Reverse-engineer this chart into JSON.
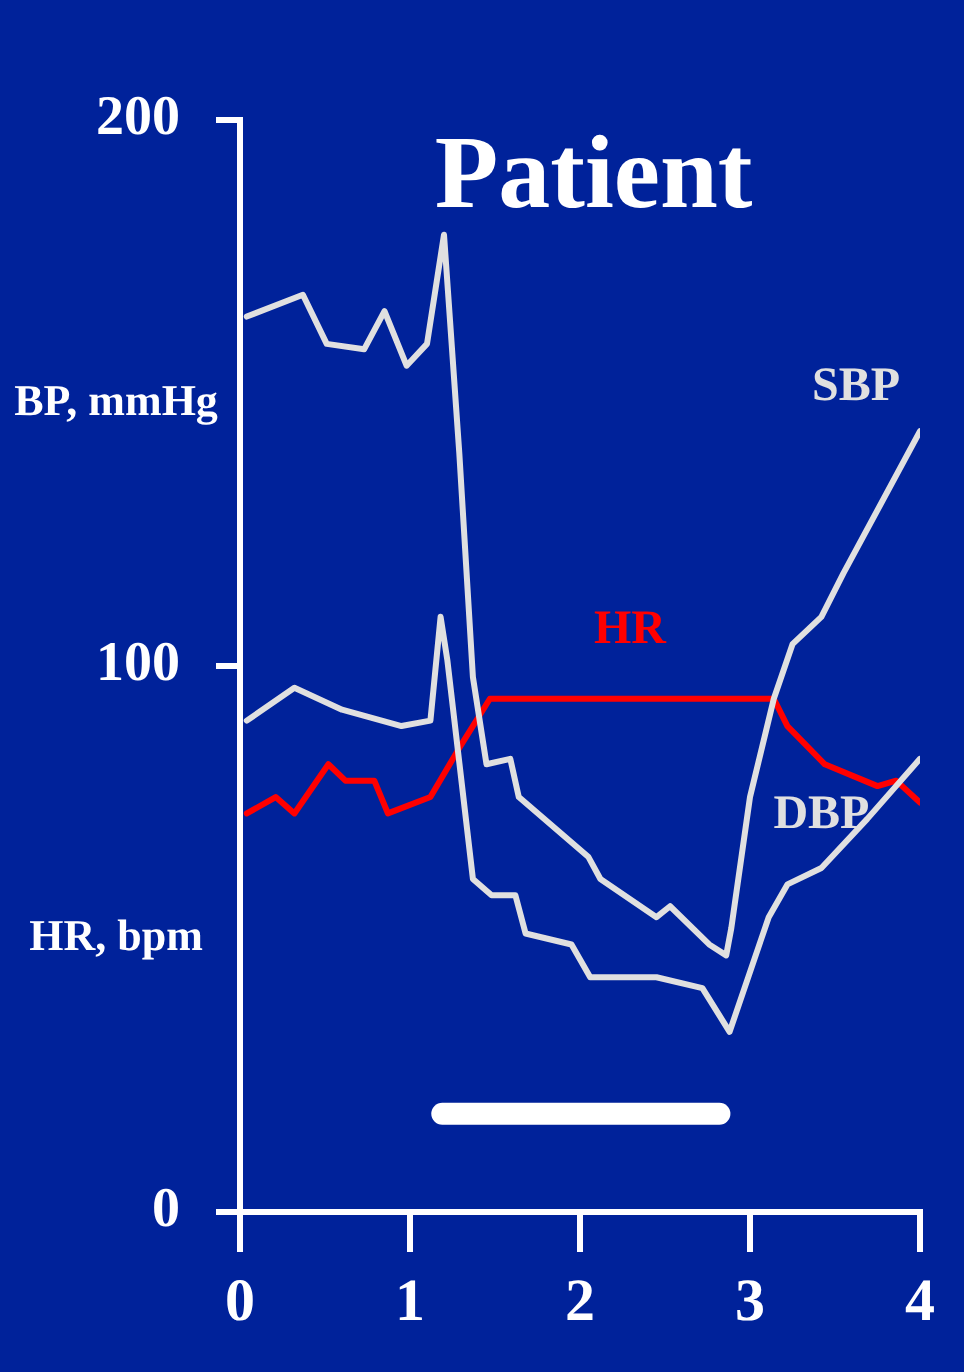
{
  "chart_data": {
    "type": "line",
    "title": "Patient",
    "ylabel": "BP, mmHg",
    "annotations": [
      "HR, bpm"
    ],
    "xlim": [
      0,
      4
    ],
    "xticks": [
      0,
      1,
      2,
      3,
      4
    ],
    "ylim": [
      0,
      200
    ],
    "yticks": [
      0,
      100,
      200
    ],
    "grid": false,
    "legend": false,
    "marker": "none",
    "line_style": "solid",
    "series": [
      {
        "name": "SBP",
        "color": "#e0e0e0",
        "x": [
          0.04,
          0.37,
          0.51,
          0.73,
          0.85,
          0.98,
          1.1,
          1.2,
          1.29,
          1.37,
          1.45,
          1.59,
          1.64,
          2.05,
          2.12,
          2.45,
          2.53,
          2.76,
          2.86,
          2.89,
          3.0,
          3.14,
          3.25,
          3.42,
          3.55,
          4.0
        ],
        "values": [
          164,
          168,
          159,
          158,
          165,
          155,
          159,
          179,
          139,
          98,
          82,
          83,
          76,
          65,
          61,
          54,
          56,
          49,
          47,
          52,
          76,
          94,
          104,
          109,
          117,
          143
        ]
      },
      {
        "name": "DBP",
        "color": "#e0e0e0",
        "x": [
          0.04,
          0.32,
          0.6,
          0.95,
          1.12,
          1.18,
          1.22,
          1.37,
          1.48,
          1.62,
          1.68,
          1.95,
          2.06,
          2.45,
          2.72,
          2.88,
          3.11,
          3.22,
          3.42,
          3.69,
          4.0
        ],
        "values": [
          90,
          96,
          92,
          89,
          90,
          109,
          101,
          61,
          58,
          58,
          51,
          49,
          43,
          43,
          41,
          33,
          54,
          60,
          63,
          72,
          83
        ]
      },
      {
        "name": "HR",
        "color": "#ff0000",
        "x": [
          0.04,
          0.21,
          0.32,
          0.52,
          0.62,
          0.79,
          0.87,
          1.12,
          1.29,
          1.47,
          3.14,
          3.22,
          3.44,
          3.75,
          3.86,
          4.0
        ],
        "values": [
          73,
          76,
          73,
          82,
          79,
          79,
          73,
          76,
          85,
          94,
          94,
          89,
          82,
          78,
          79,
          75
        ]
      },
      {
        "color": "#ffffff",
        "x": [
          1.19,
          2.82
        ],
        "values": [
          18,
          18
        ]
      }
    ]
  }
}
